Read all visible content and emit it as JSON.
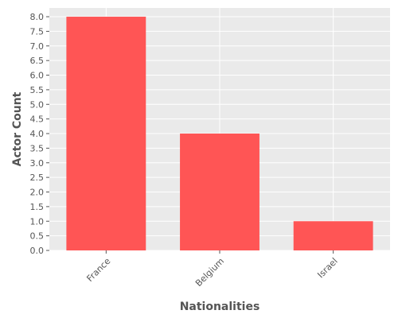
{
  "chart_data": {
    "type": "bar",
    "title": "",
    "xlabel": "Nationalities",
    "ylabel": "Actor Count",
    "categories": [
      "France",
      "Belgium",
      "Israel"
    ],
    "values": [
      8,
      4,
      1
    ],
    "ylim": [
      0,
      8.3
    ],
    "yticks": [
      "0.0",
      "0.5",
      "1.0",
      "1.5",
      "2.0",
      "2.5",
      "3.0",
      "3.5",
      "4.0",
      "4.5",
      "5.0",
      "5.5",
      "6.0",
      "6.5",
      "7.0",
      "7.5",
      "8.0"
    ],
    "grid": true,
    "legend": "none",
    "colors": {
      "bar": "#ff5555",
      "plot_background": "#eaeaea",
      "grid": "#ffffff",
      "text": "#555555"
    }
  }
}
